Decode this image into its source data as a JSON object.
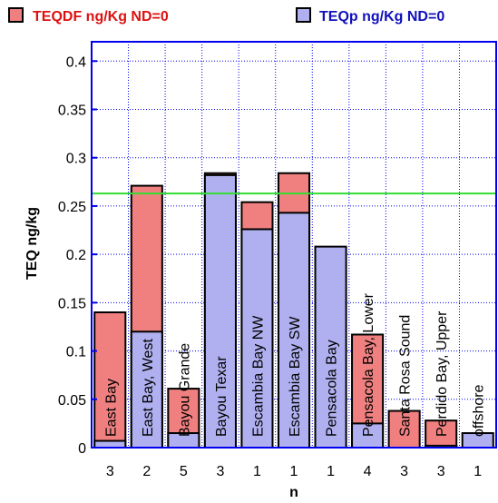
{
  "chart_data": {
    "type": "bar",
    "title": "",
    "xlabel": "n",
    "ylabel": "TEQ ng/kg",
    "ylim": [
      0,
      0.42
    ],
    "y_ticks": [
      "0",
      "0.05",
      "0.1",
      "0.15",
      "0.2",
      "0.25",
      "0.3",
      "0.35",
      "0.4"
    ],
    "y_tick_values": [
      0,
      0.05,
      0.1,
      0.15,
      0.2,
      0.25,
      0.3,
      0.35,
      0.4
    ],
    "categories": [
      "East Bay",
      "East Bay, West",
      "Bayou Grande",
      "Bayou Texar",
      "Escambia Bay NW",
      "Escambia Bay SW",
      "Pensacola Bay",
      "Pensacola Bay, Lower",
      "Santa Rosa Sound",
      "Perdido Bay, Upper",
      "offshore"
    ],
    "n_labels": [
      "3",
      "2",
      "5",
      "3",
      "1",
      "1",
      "1",
      "4",
      "3",
      "3",
      "1"
    ],
    "series": [
      {
        "name": "TEQDF ng/Kg ND=0",
        "color": "#f08080",
        "values": [
          0.14,
          0.271,
          0.061,
          0.284,
          0.254,
          0.284,
          0,
          0.117,
          0.038,
          0.028,
          0
        ]
      },
      {
        "name": "TEQp ng/Kg ND=0",
        "color": "#b0b0f0",
        "values": [
          0.007,
          0.12,
          0.015,
          0.282,
          0.226,
          0.243,
          0.208,
          0.025,
          0,
          0.002,
          0.015
        ]
      }
    ],
    "reference_line": {
      "value": 0.263,
      "color": "#33dd33"
    },
    "legend_text_colors": [
      "#dd1111",
      "#1111bb"
    ],
    "grid": true,
    "legend_position": "top"
  }
}
